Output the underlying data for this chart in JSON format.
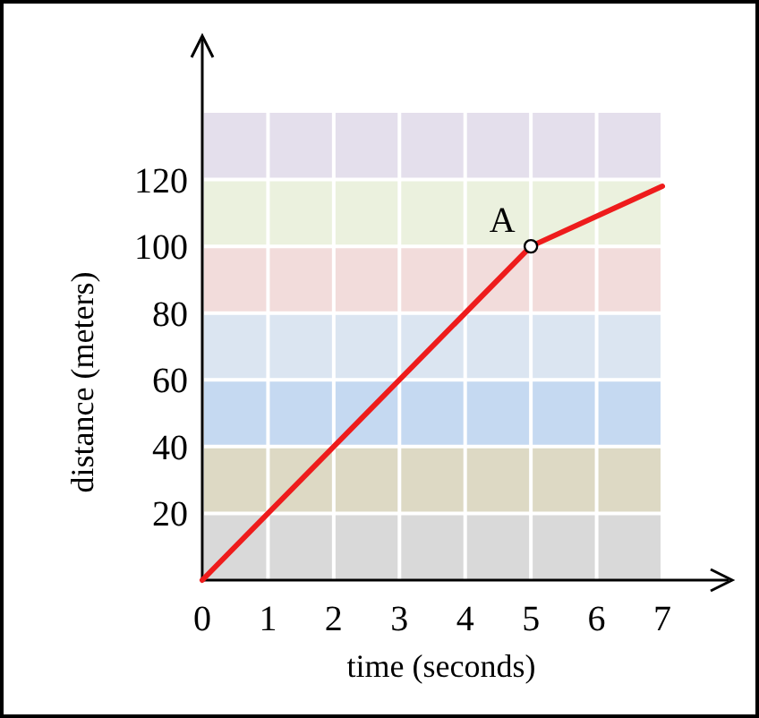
{
  "chart_data": {
    "type": "line",
    "xlabel": "time (seconds)",
    "ylabel": "distance (meters)",
    "x": [
      0,
      5,
      7
    ],
    "series": [
      {
        "color": "#ee1c1c",
        "values": [
          0,
          100,
          118
        ]
      }
    ],
    "xlim": [
      0,
      7
    ],
    "ylim": [
      0,
      140
    ],
    "xticks": [
      0,
      1,
      2,
      3,
      4,
      5,
      6,
      7
    ],
    "yticks": [
      20,
      40,
      60,
      80,
      100,
      120
    ],
    "grid": true,
    "marker": "none",
    "line_style": "solid",
    "annotations": [
      {
        "text": "A",
        "x": 5,
        "y": 100
      }
    ],
    "bands": [
      {
        "axis": "y",
        "from": 0,
        "to": 20,
        "color": "#d9d9d9"
      },
      {
        "axis": "y",
        "from": 20,
        "to": 40,
        "color": "#ddd9c4"
      },
      {
        "axis": "y",
        "from": 40,
        "to": 60,
        "color": "#c5d9f1"
      },
      {
        "axis": "y",
        "from": 60,
        "to": 80,
        "color": "#dbe5f1"
      },
      {
        "axis": "y",
        "from": 80,
        "to": 100,
        "color": "#f2dcdb"
      },
      {
        "axis": "y",
        "from": 100,
        "to": 120,
        "color": "#ebf1de"
      },
      {
        "axis": "y",
        "from": 120,
        "to": 140,
        "color": "#e4dfec"
      }
    ]
  }
}
